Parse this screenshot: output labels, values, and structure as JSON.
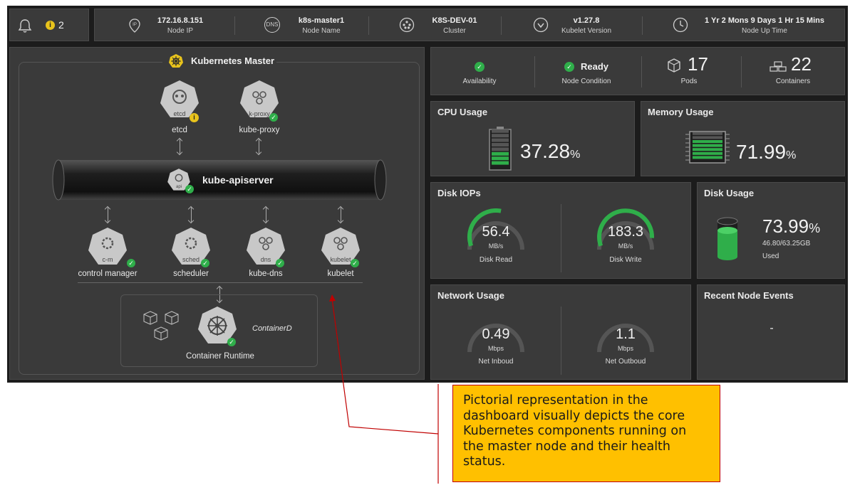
{
  "topbar": {
    "alert_count": "2",
    "node_ip": {
      "value": "172.16.8.151",
      "label": "Node IP",
      "icon": "IP"
    },
    "node_name": {
      "value": "k8s-master1",
      "label": "Node Name",
      "icon": "DNS"
    },
    "cluster": {
      "value": "K8S-DEV-01",
      "label": "Cluster"
    },
    "kubelet_version": {
      "value": "v1.27.8",
      "label": "Kubelet Version"
    },
    "uptime": {
      "value": "1 Yr 2 Mons 9 Days 1 Hr 15 Mins",
      "label": "Node Up Time"
    }
  },
  "master": {
    "title": "Kubernetes Master",
    "etcd": {
      "badge": "etcd",
      "label": "etcd"
    },
    "kube_proxy": {
      "badge": "k-proxy",
      "label": "kube-proxy"
    },
    "apiserver": {
      "badge": "api",
      "label": "kube-apiserver"
    },
    "control_manager": {
      "badge": "c-m",
      "label": "control manager"
    },
    "scheduler": {
      "badge": "sched",
      "label": "scheduler"
    },
    "kube_dns": {
      "badge": "dns",
      "label": "kube-dns"
    },
    "kubelet": {
      "badge": "kubelet",
      "label": "kubelet"
    },
    "runtime": {
      "name": "ContainerD",
      "label": "Container Runtime"
    }
  },
  "summary": {
    "availability": {
      "label": "Availability"
    },
    "node_condition": {
      "value": "Ready",
      "label": "Node Condition"
    },
    "pods": {
      "value": "17",
      "label": "Pods"
    },
    "containers": {
      "value": "22",
      "label": "Containers"
    }
  },
  "cpu": {
    "title": "CPU Usage",
    "value": "37.28",
    "unit": "%",
    "fraction": 0.3728
  },
  "memory": {
    "title": "Memory Usage",
    "value": "71.99",
    "unit": "%",
    "fraction": 0.7199
  },
  "disk_iops": {
    "title": "Disk IOPs",
    "read": {
      "value": "56.4",
      "unit": "MB/s",
      "label": "Disk Read",
      "fraction": 0.55
    },
    "write": {
      "value": "183.3",
      "unit": "MB/s",
      "label": "Disk Write",
      "fraction": 0.92
    }
  },
  "disk_usage": {
    "title": "Disk Usage",
    "value": "73.99",
    "unit": "%",
    "detail": "46.80/63.25GB",
    "sub": "Used",
    "fraction": 0.7399
  },
  "network": {
    "title": "Network Usage",
    "inbound": {
      "value": "0.49",
      "unit": "Mbps",
      "label": "Net Inboud"
    },
    "outbound": {
      "value": "1.1",
      "unit": "Mbps",
      "label": "Net Outboud"
    }
  },
  "events": {
    "title": "Recent Node Events",
    "value": "-"
  },
  "callout": {
    "text": "Pictorial representation in the dashboard visually depicts the core Kubernetes components running on the master node and their health status."
  },
  "colors": {
    "accent_green": "#2fae4a",
    "warning_yellow": "#e8c31c",
    "panel_bg": "#3a3a3a",
    "callout_bg": "#ffc000",
    "callout_border": "#c00000"
  }
}
